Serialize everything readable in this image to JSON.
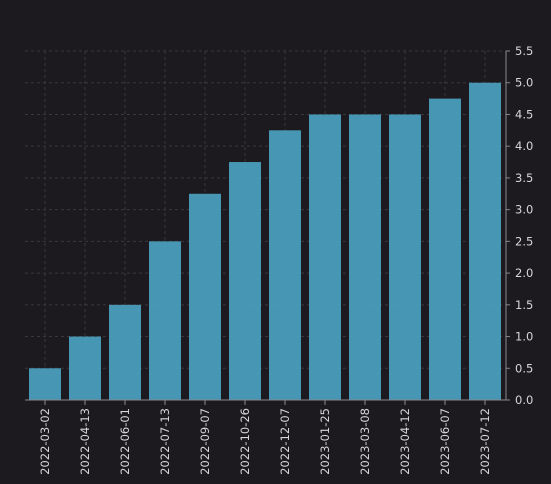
{
  "chart_data": {
    "type": "bar",
    "title": "",
    "xlabel": "",
    "ylabel": "",
    "categories": [
      "2022-03-02",
      "2022-04-13",
      "2022-06-01",
      "2022-07-13",
      "2022-09-07",
      "2022-10-26",
      "2022-12-07",
      "2023-01-25",
      "2023-03-08",
      "2023-04-12",
      "2023-06-07",
      "2023-07-12"
    ],
    "values": [
      0.5,
      1.0,
      1.5,
      2.5,
      3.25,
      3.75,
      4.25,
      4.5,
      4.5,
      4.5,
      4.75,
      5.0
    ],
    "ylim": [
      0,
      5.5
    ],
    "yticks": [
      "0.0",
      "0.5",
      "1.0",
      "1.5",
      "2.0",
      "2.5",
      "3.0",
      "3.5",
      "4.0",
      "4.5",
      "5.0",
      "5.5"
    ],
    "y_axis_side": "right",
    "grid": true,
    "bar_color": "#4a9ebd",
    "background_color": "#1c1a1f"
  }
}
